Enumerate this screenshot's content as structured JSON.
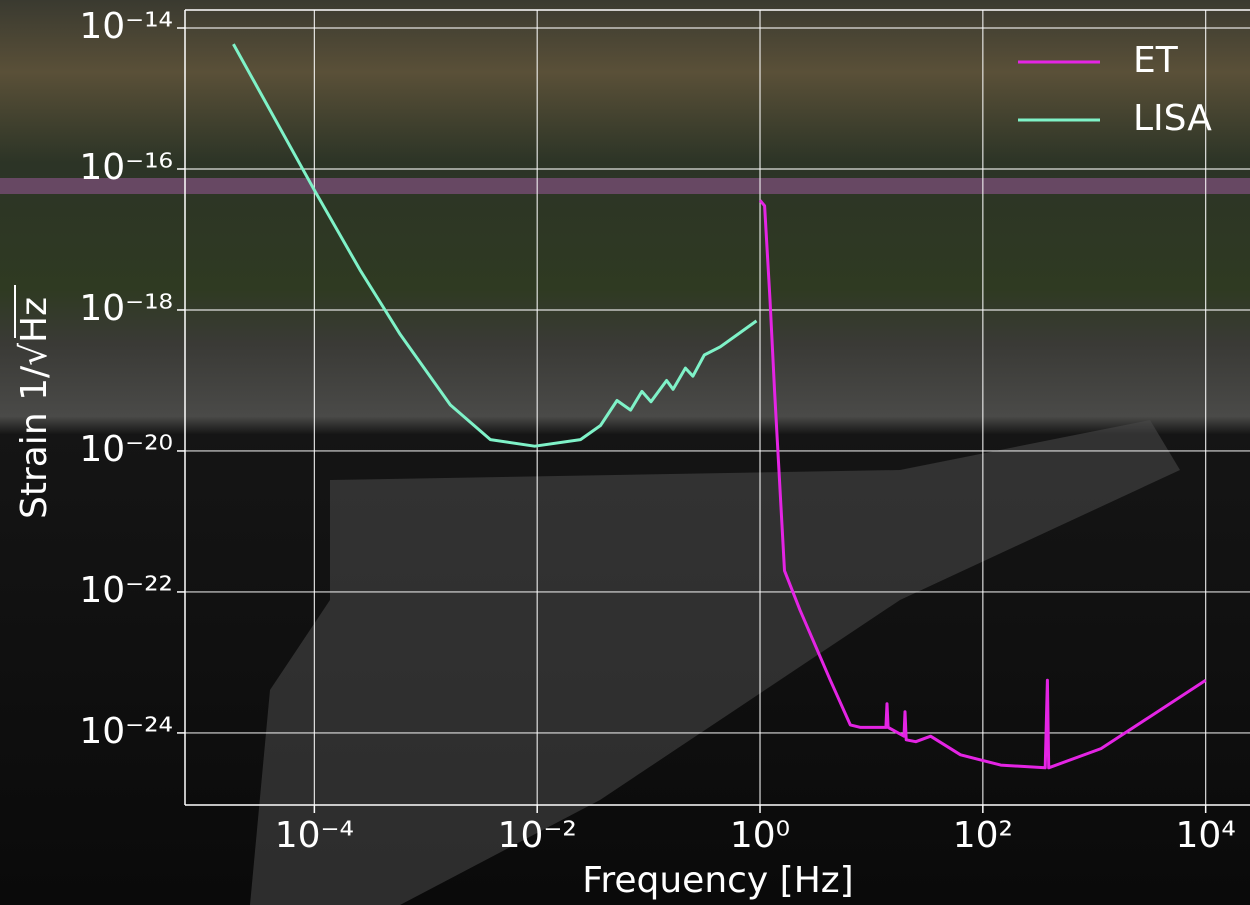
{
  "chart_data": {
    "type": "line",
    "xlabel": "Frequency [Hz]",
    "ylabel": "Strain 1/√Hz",
    "log_x": true,
    "log_y": true,
    "grid": true,
    "legend": "upper right",
    "xlim": [
      6.9e-06,
      25000.0
    ],
    "ylim": [
      9.5e-26,
      1.8e-14
    ],
    "xticks": [
      {
        "value": 0.0001,
        "label": "10⁻⁴"
      },
      {
        "value": 0.01,
        "label": "10⁻²"
      },
      {
        "value": 1,
        "label": "10⁰"
      },
      {
        "value": 100,
        "label": "10²"
      },
      {
        "value": 10000,
        "label": "10⁴"
      }
    ],
    "yticks": [
      {
        "value": 1e-14,
        "label": "10⁻¹⁴"
      },
      {
        "value": 1e-16,
        "label": "10⁻¹⁶"
      },
      {
        "value": 1e-18,
        "label": "10⁻¹⁸"
      },
      {
        "value": 1e-20,
        "label": "10⁻²⁰"
      },
      {
        "value": 1e-22,
        "label": "10⁻²²"
      },
      {
        "value": 1e-24,
        "label": "10⁻²⁴"
      }
    ],
    "series": [
      {
        "name": "ET",
        "color": "#e424e4",
        "x": [
          1.0,
          1.1,
          1.23,
          1.35,
          1.66,
          2.29,
          4.27,
          6.46,
          8,
          13.5,
          13.8,
          14.1,
          19.6,
          20,
          20.5,
          25,
          34,
          63,
          145,
          363,
          380,
          390,
          1150,
          3160,
          10000
        ],
        "values": [
          3.6e-17,
          3e-17,
          1.4e-18,
          7.4e-20,
          2e-22,
          5.5e-23,
          5.6e-24,
          1.3e-24,
          1.2e-24,
          1.2e-24,
          2.6e-24,
          1.2e-24,
          9e-25,
          2e-24,
          8e-25,
          7.5e-25,
          9e-25,
          4.9e-25,
          3.5e-25,
          3.2e-25,
          5.6e-24,
          3.2e-25,
          6e-25,
          1.7e-24,
          5.6e-24
        ]
      },
      {
        "name": "LISA",
        "color": "#7ff2c8",
        "x": [
          1.875e-05,
          0.0001,
          0.000257,
          0.000589,
          0.00166,
          0.0038,
          0.0095,
          0.0245,
          0.037,
          0.052,
          0.069,
          0.087,
          0.105,
          0.145,
          0.166,
          0.214,
          0.25,
          0.316,
          0.44,
          0.63,
          0.93
        ],
        "values": [
          5.9e-15,
          5e-17,
          3.7e-18,
          4.5e-19,
          4.5e-20,
          1.45e-20,
          1.17e-20,
          1.45e-20,
          2.3e-20,
          5.2e-20,
          3.8e-20,
          7e-20,
          5e-20,
          1e-19,
          7.5e-20,
          1.5e-19,
          1.15e-19,
          2.3e-19,
          3e-19,
          4.5e-19,
          7e-19
        ]
      }
    ]
  }
}
